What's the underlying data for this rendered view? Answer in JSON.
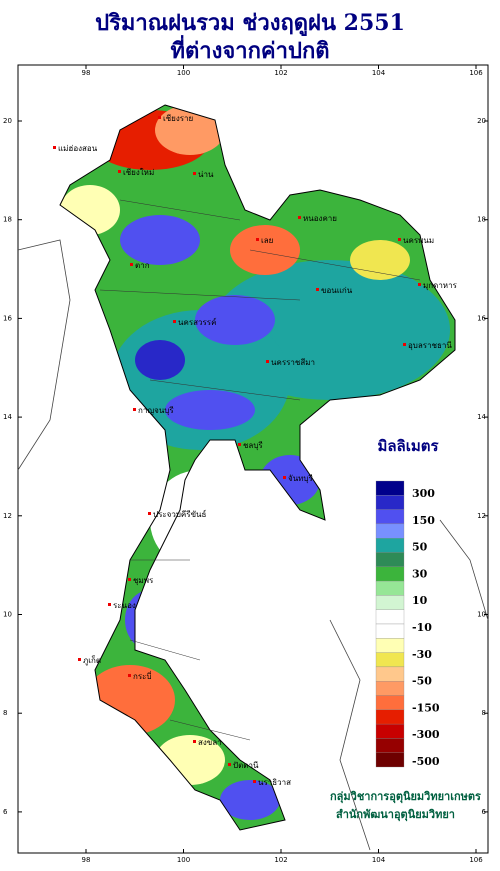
{
  "header": {
    "title": "ปริมาณฝนรวม ช่วงฤดูฝน 2551",
    "subtitle": "ที่ต่างจากค่าปกติ"
  },
  "axes": {
    "lon_ticks": [
      98,
      100,
      102,
      104,
      106
    ],
    "lat_ticks": [
      20,
      18,
      16,
      14,
      12,
      10,
      8,
      6
    ]
  },
  "legend": {
    "title": "มิลลิเมตร",
    "colors": [
      "#00008b",
      "#2828c8",
      "#5050f0",
      "#7890ff",
      "#1ea5a0",
      "#2e8b57",
      "#3cb43c",
      "#96e696",
      "#d2f5d2",
      "#ffffff",
      "#ffffff",
      "#ffffb4",
      "#f0e650",
      "#ffc88c",
      "#ff9a64",
      "#ff6e3c",
      "#e61e00",
      "#c80000",
      "#960000",
      "#6e0000"
    ],
    "labels": [
      300,
      150,
      50,
      30,
      10,
      -10,
      -30,
      -50,
      -150,
      -300,
      -500
    ]
  },
  "places": [
    "เชียงราย",
    "น่าน",
    "เชียงใหม่",
    "แม่ฮ่องสอน",
    "ตาก",
    "เลย",
    "หนองคาย",
    "นครพนม",
    "ขอนแก่น",
    "มุกดาหาร",
    "นครสวรรค์",
    "นครราชสีมา",
    "อุบลราชธานี",
    "กาญจนบุรี",
    "ชลบุรี",
    "จันทบุรี",
    "ประจวบคีรีขันธ์",
    "ชุมพร",
    "ระนอง",
    "ภูเก็ต",
    "กระบี่",
    "สงขลา",
    "ปัตตานี",
    "นราธิวาส"
  ],
  "credits": [
    "กลุ่มวิชาการอุตุนิยมวิทยาเกษตร",
    "สำนักพัฒนาอุตุนิยมวิทยา"
  ]
}
